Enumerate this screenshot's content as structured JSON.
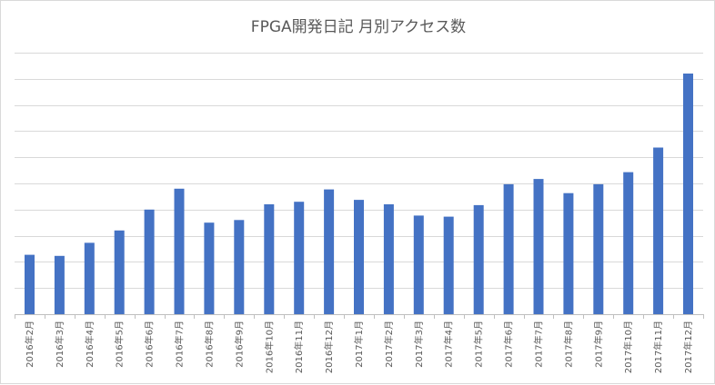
{
  "chart_data": {
    "type": "bar",
    "title": "FPGA開発日記 月別アクセス数",
    "categories": [
      "2016年2月",
      "2016年3月",
      "2016年4月",
      "2016年5月",
      "2016年6月",
      "2016年7月",
      "2016年8月",
      "2016年9月",
      "2016年10月",
      "2016年11月",
      "2016年12月",
      "2017年1月",
      "2017年2月",
      "2017年3月",
      "2017年4月",
      "2017年5月",
      "2017年6月",
      "2017年7月",
      "2017年8月",
      "2017年9月",
      "2017年10月",
      "2017年11月",
      "2017年12月"
    ],
    "values": [
      2.27,
      2.23,
      2.73,
      3.2,
      4.0,
      4.8,
      3.5,
      3.6,
      4.2,
      4.3,
      4.77,
      4.37,
      4.2,
      3.77,
      3.73,
      4.17,
      4.97,
      5.17,
      4.63,
      4.97,
      5.43,
      6.37,
      9.2
    ],
    "ylim": [
      0,
      10
    ],
    "grid": true,
    "bar_color": "#4472c4",
    "grid_color": "#d9d9d9",
    "axis_color": "#bfbfbf"
  }
}
